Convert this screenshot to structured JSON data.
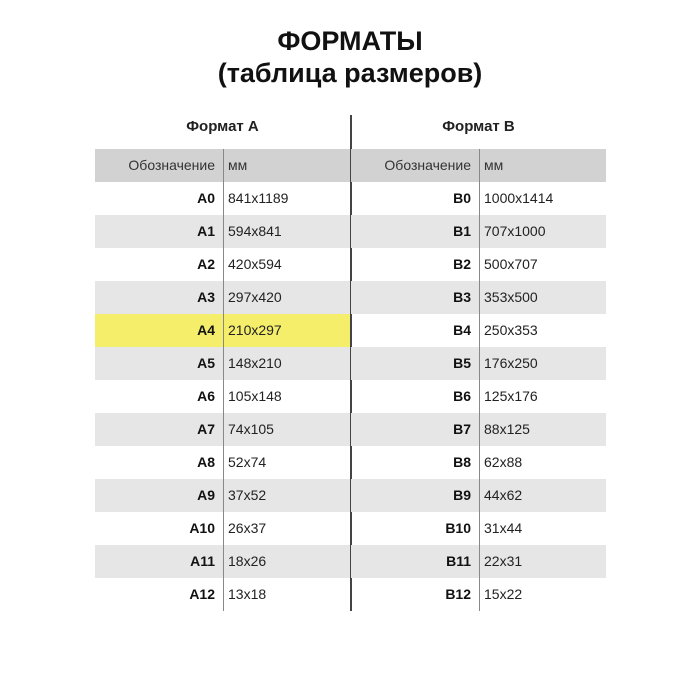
{
  "title_line1": "ФОРМАТЫ",
  "title_line2": "(таблица размеров)",
  "tables": [
    {
      "caption": "Формат А",
      "col1": "Обозначение",
      "col2": "мм",
      "highlight_color": "#f5ee6a",
      "rows": [
        [
          "A0",
          "841x1189"
        ],
        [
          "A1",
          "594x841"
        ],
        [
          "A2",
          "420x594"
        ],
        [
          "A3",
          "297x420"
        ],
        [
          "A4",
          "210x297"
        ],
        [
          "A5",
          "148x210"
        ],
        [
          "A6",
          "105x148"
        ],
        [
          "A7",
          "74x105"
        ],
        [
          "A8",
          "52x74"
        ],
        [
          "A9",
          "37x52"
        ],
        [
          "A10",
          "26x37"
        ],
        [
          "A11",
          "18x26"
        ],
        [
          "A12",
          "13x18"
        ]
      ],
      "highlighted_row": "A4"
    },
    {
      "caption": "Формат В",
      "col1": "Обозначение",
      "col2": "мм",
      "rows": [
        [
          "B0",
          "1000x1414"
        ],
        [
          "B1",
          "707x1000"
        ],
        [
          "B2",
          "500x707"
        ],
        [
          "B3",
          "353x500"
        ],
        [
          "B4",
          "250x353"
        ],
        [
          "B5",
          "176x250"
        ],
        [
          "B6",
          "125x176"
        ],
        [
          "B7",
          "88x125"
        ],
        [
          "B8",
          "62x88"
        ],
        [
          "B9",
          "44x62"
        ],
        [
          "B10",
          "31x44"
        ],
        [
          "B11",
          "22x31"
        ],
        [
          "B12",
          "15x22"
        ]
      ]
    }
  ]
}
